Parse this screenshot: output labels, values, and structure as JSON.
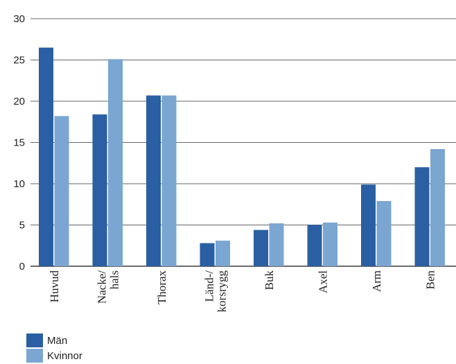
{
  "chart_data": {
    "type": "bar",
    "categories": [
      "Huvud",
      "Nacke/\nhals",
      "Thorax",
      "Länd-/\nkorsrygg",
      "Buk",
      "Axel",
      "Arm",
      "Ben"
    ],
    "series": [
      {
        "name": "Män",
        "color": "#2a5fa3",
        "values": [
          26.5,
          18.4,
          20.7,
          2.8,
          4.4,
          5.0,
          9.9,
          12.0
        ]
      },
      {
        "name": "Kvinnor",
        "color": "#7aa6d1",
        "values": [
          18.2,
          25.1,
          20.7,
          3.1,
          5.2,
          5.3,
          7.9,
          14.2
        ]
      }
    ],
    "yticks": [
      0,
      5,
      10,
      15,
      20,
      25,
      30
    ],
    "ylim": [
      0,
      30
    ],
    "grid": true,
    "legend_position": "bottom-left"
  }
}
